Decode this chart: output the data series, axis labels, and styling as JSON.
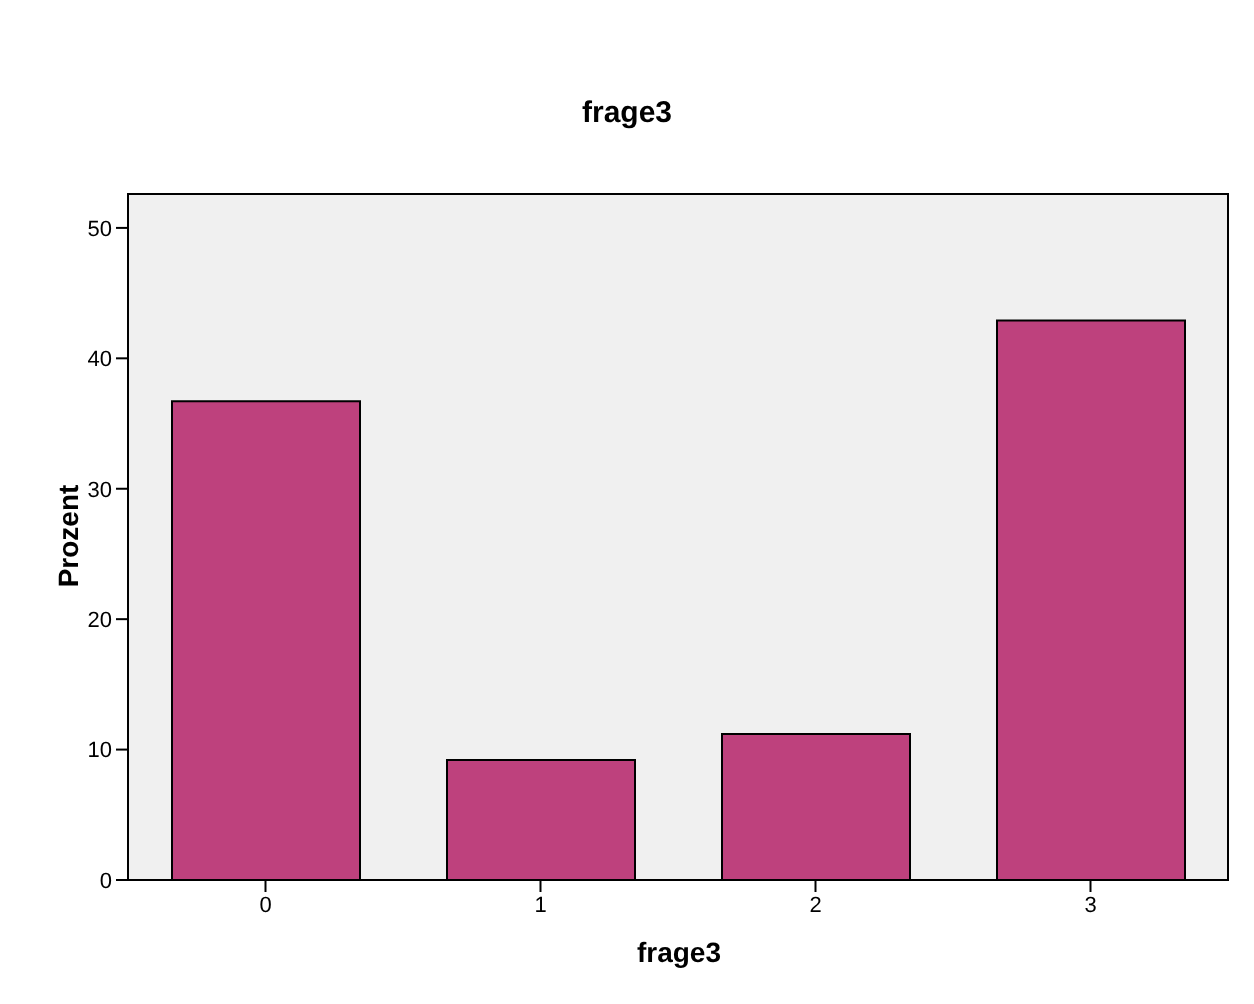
{
  "chart_data": {
    "type": "bar",
    "title": "frage3",
    "xlabel": "frage3",
    "ylabel": "Prozent",
    "categories": [
      "0",
      "1",
      "2",
      "3"
    ],
    "values": [
      36.7,
      9.2,
      11.2,
      42.9
    ],
    "color": "#be417d",
    "ylim": [
      0,
      52.6
    ],
    "yticks": [
      0,
      10,
      20,
      30,
      40,
      50
    ]
  }
}
